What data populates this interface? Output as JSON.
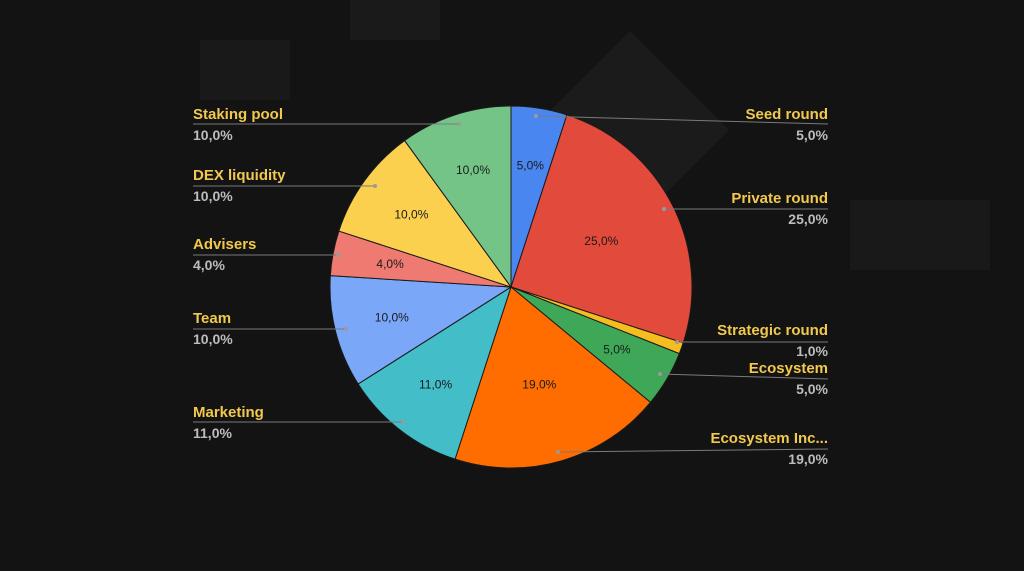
{
  "colors": {
    "background": "#131313",
    "label_name": "#f2c94c",
    "label_value": "#bdbdbd",
    "leader": "#7a7a7a"
  },
  "chart_data": {
    "type": "pie",
    "title": "",
    "start": "top, clockwise",
    "slices": [
      {
        "name": "Seed round",
        "value": 5.0,
        "display": "5,0%",
        "color": "#4a86f0",
        "side": "right"
      },
      {
        "name": "Private round",
        "value": 25.0,
        "display": "25,0%",
        "color": "#e24a3b",
        "side": "right"
      },
      {
        "name": "Strategic round",
        "value": 1.0,
        "display": "1,0%",
        "color": "#f5bd1f",
        "side": "right"
      },
      {
        "name": "Ecosystem",
        "value": 5.0,
        "display": "5,0%",
        "color": "#3ea858",
        "side": "right"
      },
      {
        "name": "Ecosystem Inc...",
        "value": 19.0,
        "display": "19,0%",
        "color": "#ff6d00",
        "side": "right"
      },
      {
        "name": "Marketing",
        "value": 11.0,
        "display": "11,0%",
        "color": "#43bec8",
        "side": "left"
      },
      {
        "name": "Team",
        "value": 10.0,
        "display": "10,0%",
        "color": "#7aa7f8",
        "side": "left"
      },
      {
        "name": "Advisers",
        "value": 4.0,
        "display": "4,0%",
        "color": "#ee7a72",
        "side": "left"
      },
      {
        "name": "DEX liquidity",
        "value": 10.0,
        "display": "10,0%",
        "color": "#fcd04f",
        "side": "left"
      },
      {
        "name": "Staking pool",
        "value": 10.0,
        "display": "10,0%",
        "color": "#74c488",
        "side": "left"
      }
    ]
  }
}
